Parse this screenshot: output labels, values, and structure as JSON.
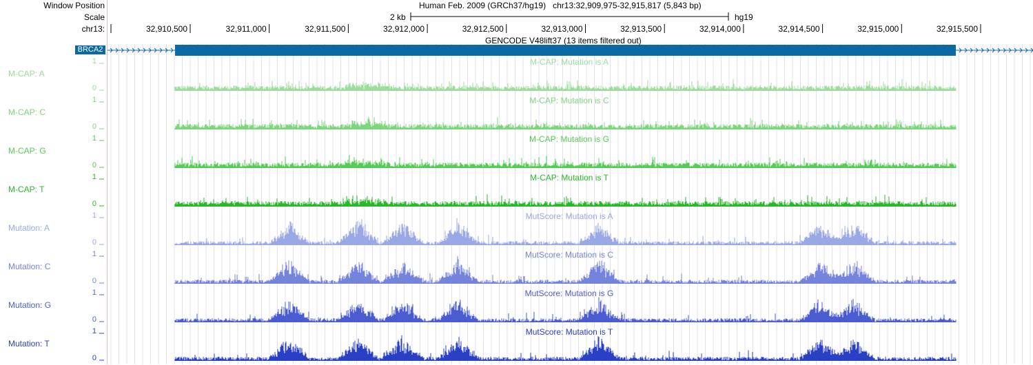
{
  "header": {
    "window_position_label": "Window Position",
    "scale_label": "Scale",
    "chrom_label": "chr13:",
    "assembly_title": "Human Feb. 2009 (GRCh37/hg19)",
    "position_text": "chr13:32,909,975-32,915,817 (5,843 bp)",
    "scale_text": "2 kb",
    "scale_db": "hg19"
  },
  "ruler": {
    "ticks": [
      "32,910,500",
      "32,911,000",
      "32,911,500",
      "32,912,000",
      "32,912,500",
      "32,913,000",
      "32,913,500",
      "32,914,000",
      "32,914,500",
      "32,915,000",
      "32,915,500"
    ]
  },
  "gene_track": {
    "gene_name": "BRCA2",
    "title": "GENCODE V48lift37 (13 items filtered out)",
    "color": "#0b6aa6"
  },
  "tracks": [
    {
      "side_label": "M-CAP: A",
      "title": "M-CAP: Mutation is A",
      "max": "1",
      "min": "0",
      "color": "#9ddc9d",
      "label_color": "#9ddc9d",
      "kind": "mcap"
    },
    {
      "side_label": "M-CAP: C",
      "title": "M-CAP: Mutation is C",
      "max": "1",
      "min": "0",
      "color": "#7dd67d",
      "label_color": "#7dd67d",
      "kind": "mcap"
    },
    {
      "side_label": "M-CAP: G",
      "title": "M-CAP: Mutation is G",
      "max": "1",
      "min": "0",
      "color": "#55cc55",
      "label_color": "#55cc55",
      "kind": "mcap"
    },
    {
      "side_label": "M-CAP: T",
      "title": "M-CAP: Mutation is T",
      "max": "1",
      "min": "0",
      "color": "#2ab82a",
      "label_color": "#2ab82a",
      "kind": "mcap"
    },
    {
      "side_label": "Mutation: A",
      "title": "MutScore: Mutation is A",
      "max": "1",
      "min": "0",
      "color": "#9aa8e6",
      "label_color": "#9aa8e6",
      "kind": "mut"
    },
    {
      "side_label": "Mutation: C",
      "title": "MutScore: Mutation is C",
      "max": "1",
      "min": "0",
      "color": "#7484da",
      "label_color": "#7484da",
      "kind": "mut"
    },
    {
      "side_label": "Mutation: G",
      "title": "MutScore: Mutation is G",
      "max": "1",
      "min": "0",
      "color": "#4a5ccf",
      "label_color": "#4a5ccf",
      "kind": "mut"
    },
    {
      "side_label": "Mutation: T",
      "title": "MutScore: Mutation is T",
      "max": "1",
      "min": "0",
      "color": "#2a40c4",
      "label_color": "#2a40c4",
      "kind": "mut"
    }
  ]
}
